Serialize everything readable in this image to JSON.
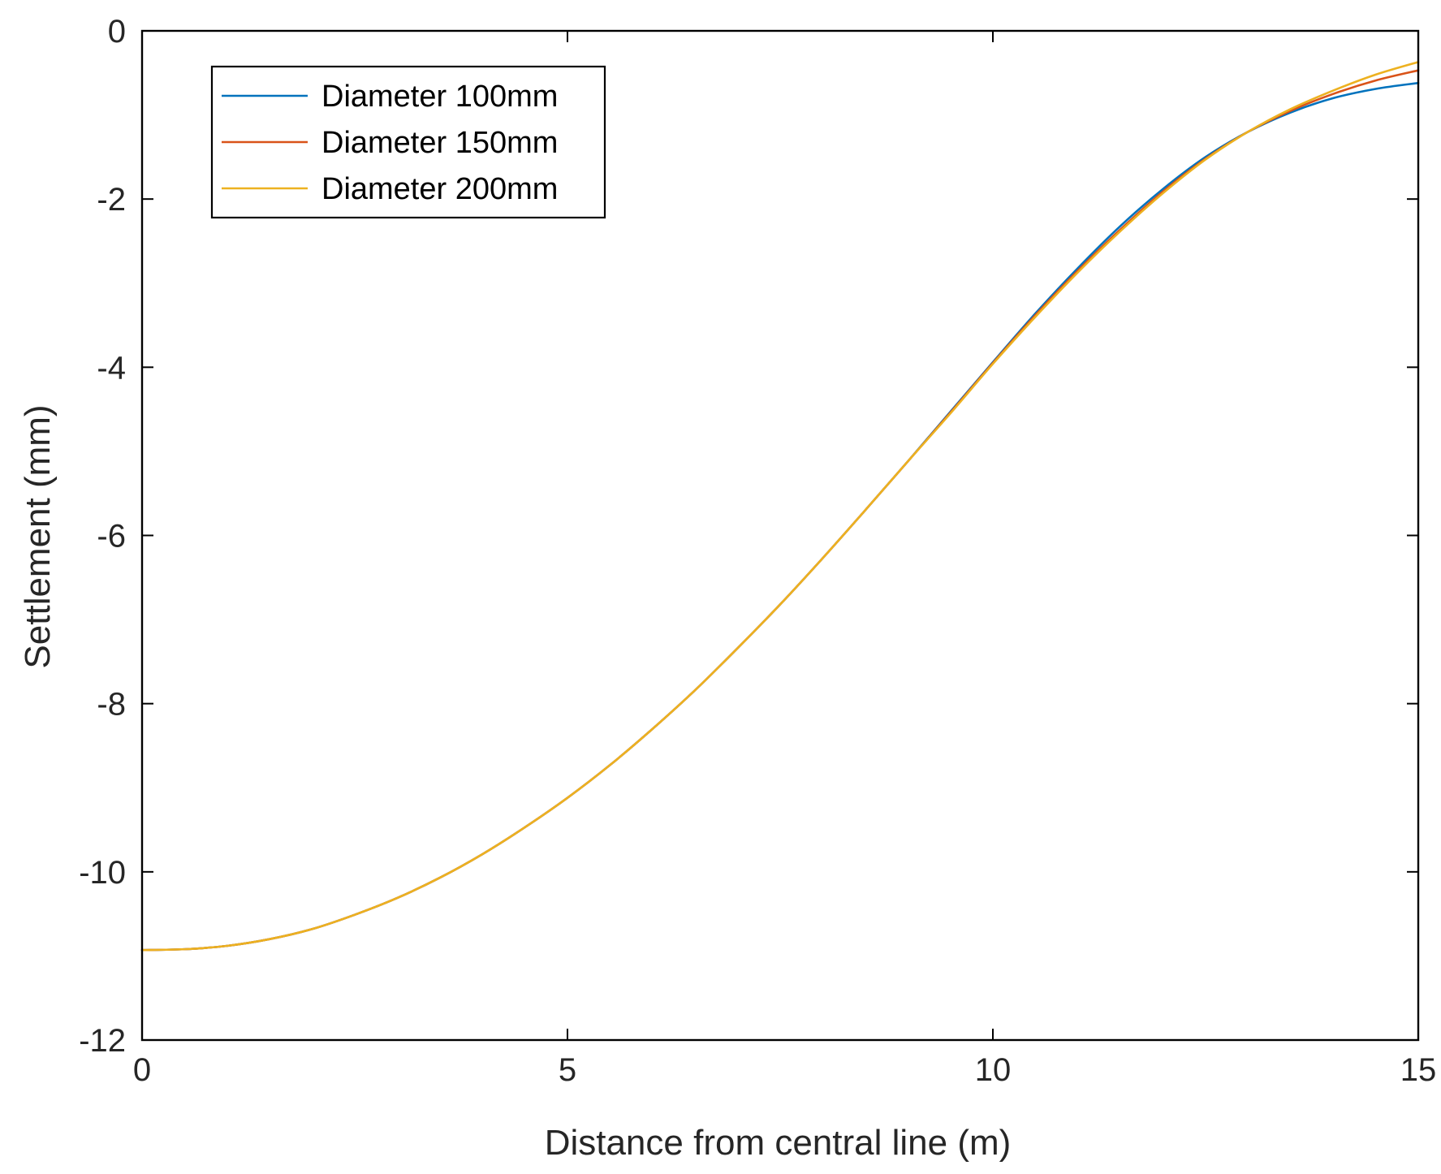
{
  "chart_data": {
    "type": "line",
    "title": "",
    "xlabel": "Distance from central line (m)",
    "ylabel": "Settlement (mm)",
    "xlim": [
      0,
      15
    ],
    "ylim": [
      -12,
      0
    ],
    "xticks": [
      0,
      5,
      10,
      15
    ],
    "xtick_labels": [
      "0",
      "5",
      "10",
      "15"
    ],
    "yticks": [
      0,
      -2,
      -4,
      -6,
      -8,
      -10,
      -12
    ],
    "ytick_labels": [
      "0",
      "-2",
      "-4",
      "-6",
      "-8",
      "-10",
      "-12"
    ],
    "grid": false,
    "legend": {
      "position": "top-left"
    },
    "series": [
      {
        "name": "Diameter 100mm",
        "color": "#0072BD",
        "x": [
          0,
          0.5,
          1,
          1.5,
          2,
          2.5,
          3,
          3.5,
          4,
          4.5,
          5,
          5.5,
          6,
          6.5,
          7,
          7.5,
          8,
          8.5,
          9,
          9.5,
          10,
          10.5,
          11,
          11.5,
          12,
          12.5,
          13,
          13.5,
          14,
          14.5,
          15
        ],
        "y": [
          -10.93,
          -10.92,
          -10.88,
          -10.8,
          -10.68,
          -10.51,
          -10.31,
          -10.07,
          -9.79,
          -9.47,
          -9.12,
          -8.73,
          -8.3,
          -7.84,
          -7.34,
          -6.82,
          -6.27,
          -5.7,
          -5.12,
          -4.53,
          -3.94,
          -3.36,
          -2.82,
          -2.32,
          -1.88,
          -1.5,
          -1.2,
          -0.97,
          -0.8,
          -0.69,
          -0.62
        ]
      },
      {
        "name": "Diameter 150mm",
        "color": "#D95319",
        "x": [
          0,
          0.5,
          1,
          1.5,
          2,
          2.5,
          3,
          3.5,
          4,
          4.5,
          5,
          5.5,
          6,
          6.5,
          7,
          7.5,
          8,
          8.5,
          9,
          9.5,
          10,
          10.5,
          11,
          11.5,
          12,
          12.5,
          13,
          13.5,
          14,
          14.5,
          15
        ],
        "y": [
          -10.93,
          -10.92,
          -10.88,
          -10.8,
          -10.68,
          -10.51,
          -10.31,
          -10.07,
          -9.79,
          -9.47,
          -9.12,
          -8.73,
          -8.3,
          -7.84,
          -7.34,
          -6.82,
          -6.27,
          -5.7,
          -5.12,
          -4.54,
          -3.95,
          -3.38,
          -2.85,
          -2.36,
          -1.91,
          -1.52,
          -1.2,
          -0.95,
          -0.75,
          -0.59,
          -0.47
        ]
      },
      {
        "name": "Diameter 200mm",
        "color": "#EDB120",
        "x": [
          0,
          0.5,
          1,
          1.5,
          2,
          2.5,
          3,
          3.5,
          4,
          4.5,
          5,
          5.5,
          6,
          6.5,
          7,
          7.5,
          8,
          8.5,
          9,
          9.5,
          10,
          10.5,
          11,
          11.5,
          12,
          12.5,
          13,
          13.5,
          14,
          14.5,
          15
        ],
        "y": [
          -10.93,
          -10.92,
          -10.88,
          -10.8,
          -10.68,
          -10.51,
          -10.31,
          -10.07,
          -9.79,
          -9.47,
          -9.12,
          -8.73,
          -8.3,
          -7.84,
          -7.34,
          -6.82,
          -6.27,
          -5.7,
          -5.12,
          -4.55,
          -3.96,
          -3.4,
          -2.87,
          -2.38,
          -1.93,
          -1.53,
          -1.2,
          -0.93,
          -0.71,
          -0.52,
          -0.37
        ]
      }
    ]
  }
}
